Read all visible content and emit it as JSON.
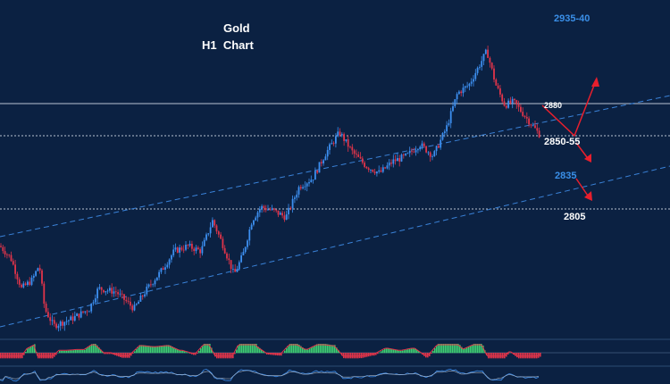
{
  "header": {
    "symbol": "Gold",
    "timeframe": "H1  Chart"
  },
  "levels": {
    "resistance_label": "2935-40",
    "current_label": "2880",
    "support1_label": "2850-55",
    "mid_label": "2835",
    "support2_label": "2805"
  },
  "colors": {
    "background": "#0b2142",
    "bull_candle": "#3d8ff0",
    "bear_candle": "#e0344a",
    "arrow": "#e81f2d",
    "channel_line": "#3a82d8",
    "level_line": "#b9c3d1",
    "hist_positive": "#3fd073",
    "label_blue": "#3a8fe8",
    "label_white": "#ffffff"
  },
  "chart_data": {
    "type": "candlestick",
    "title": "Gold H1 Chart",
    "ylim": [
      2760,
      2960
    ],
    "close_path": [
      [
        0,
        2815
      ],
      [
        12,
        2808
      ],
      [
        24,
        2790
      ],
      [
        36,
        2795
      ],
      [
        44,
        2804
      ],
      [
        50,
        2778
      ],
      [
        60,
        2768
      ],
      [
        80,
        2772
      ],
      [
        100,
        2778
      ],
      [
        110,
        2790
      ],
      [
        130,
        2788
      ],
      [
        150,
        2778
      ],
      [
        165,
        2790
      ],
      [
        180,
        2800
      ],
      [
        195,
        2812
      ],
      [
        210,
        2815
      ],
      [
        225,
        2812
      ],
      [
        238,
        2830
      ],
      [
        250,
        2815
      ],
      [
        262,
        2798
      ],
      [
        272,
        2810
      ],
      [
        282,
        2830
      ],
      [
        292,
        2838
      ],
      [
        305,
        2836
      ],
      [
        320,
        2832
      ],
      [
        335,
        2850
      ],
      [
        350,
        2855
      ],
      [
        365,
        2870
      ],
      [
        380,
        2882
      ],
      [
        395,
        2870
      ],
      [
        410,
        2862
      ],
      [
        425,
        2858
      ],
      [
        440,
        2865
      ],
      [
        455,
        2868
      ],
      [
        470,
        2875
      ],
      [
        485,
        2868
      ],
      [
        500,
        2885
      ],
      [
        512,
        2905
      ],
      [
        525,
        2910
      ],
      [
        535,
        2920
      ],
      [
        545,
        2930
      ],
      [
        555,
        2910
      ],
      [
        565,
        2898
      ],
      [
        575,
        2900
      ],
      [
        590,
        2890
      ],
      [
        605,
        2880
      ]
    ],
    "horizontal_levels": [
      2880,
      2850,
      2805
    ],
    "projection_arrows": [
      {
        "from": [
          607,
          2880
        ],
        "to": [
          643,
          2852
        ]
      },
      {
        "from": [
          643,
          2852
        ],
        "to": [
          668,
          2900
        ]
      },
      {
        "from": [
          643,
          2852
        ],
        "to": [
          660,
          2832
        ]
      },
      {
        "from": [
          645,
          2828
        ],
        "to": [
          660,
          2812
        ]
      }
    ],
    "grid": false
  }
}
